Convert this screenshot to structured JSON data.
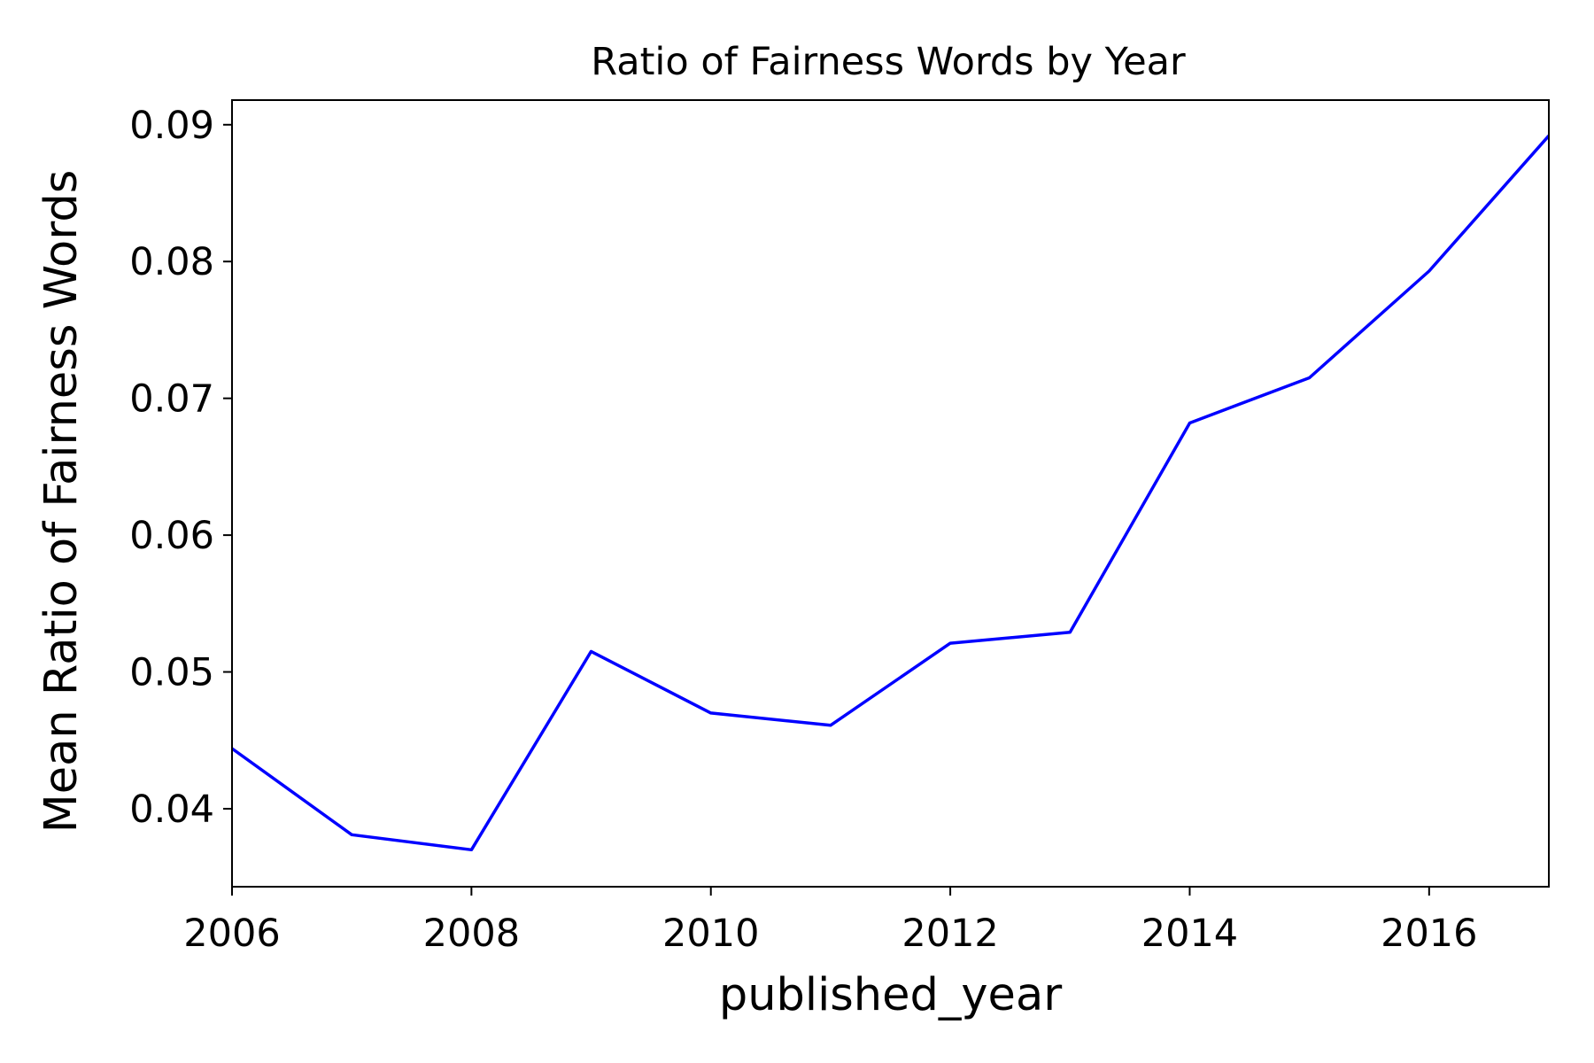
{
  "chart_data": {
    "type": "line",
    "title": "Ratio of Fairness Words by Year",
    "xlabel": "published_year",
    "ylabel": "Mean Ratio of Fairness Words",
    "xlim": [
      2006,
      2017
    ],
    "ylim": [
      0.0343,
      0.0918
    ],
    "xticks": [
      2006,
      2008,
      2010,
      2012,
      2014,
      2016
    ],
    "xtick_labels": [
      "2006",
      "2008",
      "2010",
      "2012",
      "2014",
      "2016"
    ],
    "yticks": [
      0.04,
      0.05,
      0.06,
      0.07,
      0.08,
      0.09
    ],
    "ytick_labels": [
      "0.04",
      "0.05",
      "0.06",
      "0.07",
      "0.08",
      "0.09"
    ],
    "grid": false,
    "series": [
      {
        "name": "Mean Ratio of Fairness Words",
        "color": "#0000ff",
        "x": [
          2006,
          2007,
          2008,
          2009,
          2010,
          2011,
          2012,
          2013,
          2014,
          2015,
          2016,
          2017
        ],
        "values": [
          0.0444,
          0.0381,
          0.037,
          0.0515,
          0.047,
          0.0461,
          0.0521,
          0.0529,
          0.0682,
          0.0715,
          0.0793,
          0.0892
        ]
      }
    ]
  }
}
